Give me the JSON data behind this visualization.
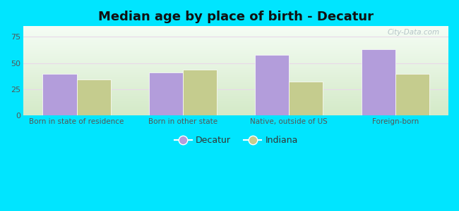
{
  "title": "Median age by place of birth - Decatur",
  "categories": [
    "Born in state of residence",
    "Born in other state",
    "Native, outside of US",
    "Foreign-born"
  ],
  "decatur_values": [
    40,
    41,
    58,
    63
  ],
  "indiana_values": [
    34,
    44,
    32,
    40
  ],
  "decatur_color": "#b39ddb",
  "indiana_color": "#c5cc8e",
  "background_color": "#00e5ff",
  "ylim": [
    0,
    85
  ],
  "yticks": [
    0,
    25,
    50,
    75
  ],
  "legend_labels": [
    "Decatur",
    "Indiana"
  ],
  "title_fontsize": 13,
  "bar_width": 0.32,
  "grid_color": "#e8d8e8",
  "watermark": "City-Data.com"
}
